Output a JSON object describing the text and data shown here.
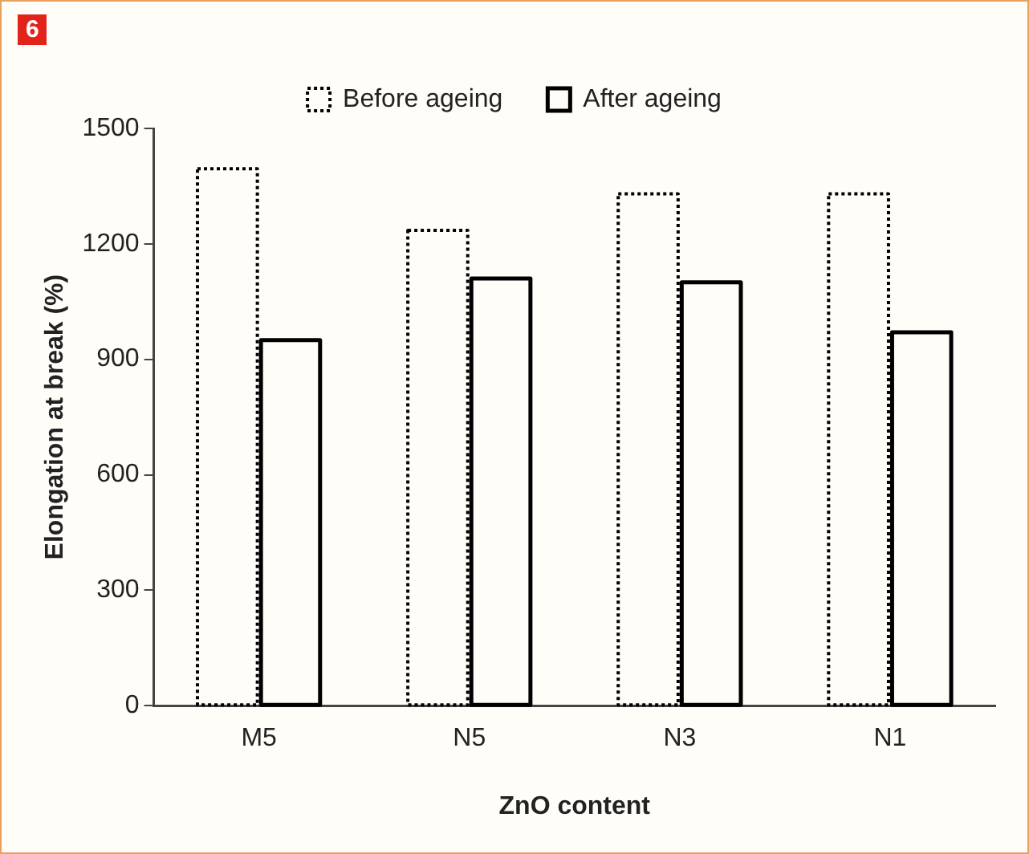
{
  "chart_data": {
    "type": "bar",
    "xlabel": "ZnO content",
    "ylabel": "Elongation at break (%)",
    "categories": [
      "M5",
      "N5",
      "N3",
      "N1"
    ],
    "series": [
      {
        "name": "Before ageing",
        "color": "#000000",
        "line_style": "dotted",
        "values": [
          1395,
          1235,
          1330,
          1330
        ]
      },
      {
        "name": "After ageing",
        "color": "#000000",
        "line_style": "solid",
        "values": [
          950,
          1110,
          1100,
          970
        ]
      }
    ],
    "ylim": [
      0,
      1500
    ],
    "yticks": [
      0,
      300,
      600,
      900,
      1200,
      1500
    ],
    "grid": false,
    "legend": "top",
    "annotations": [
      "6"
    ]
  }
}
